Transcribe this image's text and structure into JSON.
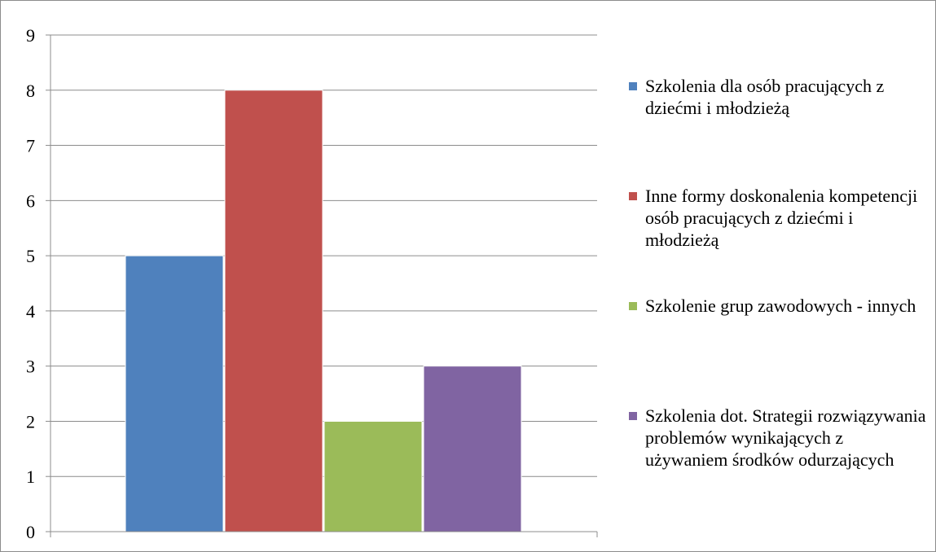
{
  "chart_data": {
    "type": "bar",
    "title": "",
    "xlabel": "",
    "ylabel": "",
    "ylim": [
      0,
      9
    ],
    "yticks": [
      0,
      1,
      2,
      3,
      4,
      5,
      6,
      7,
      8,
      9
    ],
    "grid": true,
    "legend_position": "right",
    "series": [
      {
        "name": "Szkolenia dla osób pracujących z dziećmi i młodzieżą",
        "value": 5,
        "color": "#4f81bd"
      },
      {
        "name": "Inne formy doskonalenia kompetencji osób pracujących z dziećmi i młodzieżą",
        "value": 8,
        "color": "#c0504d"
      },
      {
        "name": "Szkolenie grup zawodowych - innych",
        "value": 2,
        "color": "#9bbb59"
      },
      {
        "name": "Szkolenia dot. Strategii rozwiązywania problemów wynikających z używaniem środków odurzających",
        "value": 3,
        "color": "#8064a2"
      }
    ]
  }
}
